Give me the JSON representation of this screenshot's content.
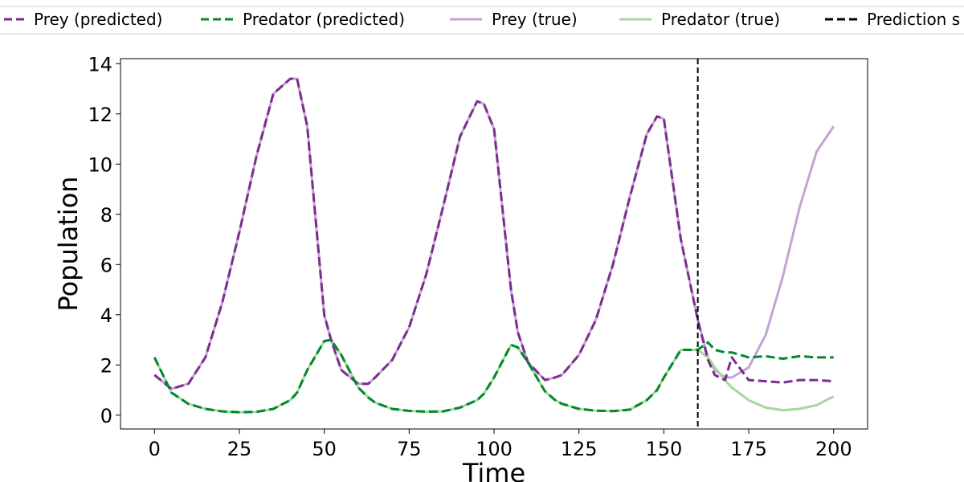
{
  "chart_data": {
    "type": "line",
    "xlabel": "Time",
    "ylabel": "Population",
    "xlim": [
      -10,
      210
    ],
    "ylim": [
      -0.55,
      14.2
    ],
    "xticks": [
      0,
      25,
      50,
      75,
      100,
      125,
      150,
      175,
      200
    ],
    "yticks": [
      0,
      2,
      4,
      6,
      8,
      10,
      12,
      14
    ],
    "grid": false,
    "legend_position": "top (above plot)",
    "x": [
      0,
      5,
      10,
      15,
      20,
      25,
      30,
      35,
      40,
      42,
      45,
      50,
      52,
      55,
      60,
      63,
      65,
      70,
      75,
      80,
      85,
      90,
      95,
      97,
      100,
      105,
      107,
      110,
      115,
      118,
      120,
      125,
      130,
      135,
      140,
      145,
      148,
      150,
      155,
      160,
      163,
      165,
      168,
      170,
      175,
      180,
      185,
      190,
      195,
      200
    ],
    "series": [
      {
        "name": "Prey (predicted)",
        "color": "#7b2d8e",
        "dash": "dashed",
        "values": [
          1.6,
          1.05,
          1.25,
          2.3,
          4.5,
          7.3,
          10.3,
          12.8,
          13.4,
          13.4,
          11.5,
          4.0,
          3.0,
          1.8,
          1.25,
          1.25,
          1.5,
          2.2,
          3.5,
          5.6,
          8.3,
          11.1,
          12.5,
          12.4,
          11.4,
          5.0,
          3.3,
          2.1,
          1.4,
          1.5,
          1.6,
          2.4,
          3.8,
          6.0,
          8.7,
          11.2,
          11.9,
          11.8,
          7.0,
          3.8,
          2.2,
          1.6,
          1.4,
          2.3,
          1.4,
          1.35,
          1.3,
          1.4,
          1.4,
          1.35
        ]
      },
      {
        "name": "Predator (predicted)",
        "color": "#00882e",
        "dash": "dashed",
        "values": [
          2.3,
          0.9,
          0.45,
          0.25,
          0.15,
          0.12,
          0.13,
          0.25,
          0.6,
          0.9,
          1.8,
          2.95,
          3.0,
          2.4,
          1.1,
          0.7,
          0.5,
          0.25,
          0.17,
          0.14,
          0.15,
          0.3,
          0.6,
          0.85,
          1.5,
          2.8,
          2.7,
          2.1,
          0.95,
          0.6,
          0.45,
          0.25,
          0.18,
          0.16,
          0.22,
          0.6,
          1.0,
          1.5,
          2.6,
          2.6,
          2.9,
          2.6,
          2.5,
          2.5,
          2.3,
          2.35,
          2.25,
          2.35,
          2.3,
          2.3
        ]
      },
      {
        "name": "Prey (true)",
        "color": "#c4a3d5",
        "dash": "solid",
        "values": [
          1.6,
          1.05,
          1.25,
          2.3,
          4.5,
          7.3,
          10.3,
          12.8,
          13.4,
          13.4,
          11.5,
          4.0,
          3.0,
          1.8,
          1.25,
          1.25,
          1.5,
          2.2,
          3.5,
          5.6,
          8.3,
          11.1,
          12.5,
          12.4,
          11.4,
          5.0,
          3.3,
          2.1,
          1.4,
          1.5,
          1.6,
          2.4,
          3.8,
          6.0,
          8.7,
          11.2,
          11.9,
          11.8,
          7.0,
          3.8,
          2.3,
          1.8,
          1.5,
          1.5,
          1.9,
          3.2,
          5.5,
          8.3,
          10.5,
          11.5
        ]
      },
      {
        "name": "Predator (true)",
        "color": "#a3d99a",
        "dash": "solid",
        "values": [
          2.3,
          0.9,
          0.45,
          0.25,
          0.15,
          0.12,
          0.13,
          0.25,
          0.6,
          0.9,
          1.8,
          2.95,
          3.0,
          2.4,
          1.1,
          0.7,
          0.5,
          0.25,
          0.17,
          0.14,
          0.15,
          0.3,
          0.6,
          0.85,
          1.5,
          2.8,
          2.7,
          2.1,
          0.95,
          0.6,
          0.45,
          0.25,
          0.18,
          0.16,
          0.22,
          0.6,
          1.0,
          1.5,
          2.6,
          2.6,
          2.3,
          1.9,
          1.4,
          1.1,
          0.6,
          0.3,
          0.2,
          0.25,
          0.4,
          0.75
        ]
      }
    ],
    "vline": {
      "name": "Prediction s",
      "x": 160,
      "color": "#000000",
      "dash": "dashed"
    }
  }
}
